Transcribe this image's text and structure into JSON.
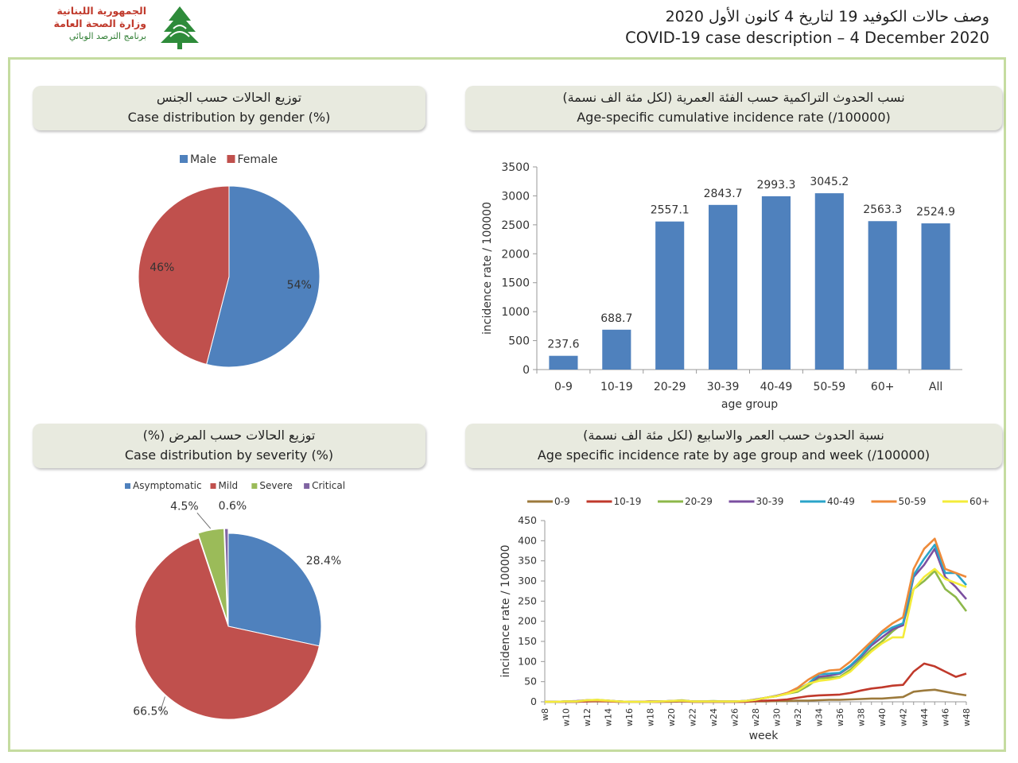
{
  "logo": {
    "line1": "الجمهورية اللبنانية",
    "line2": "وزارة الصحة العامة",
    "line3": "برنامج الترصد الوبائي"
  },
  "header": {
    "title_ar": "وصف حالات الكوفيد 19 لتاريخ  4 كانون الأول 2020",
    "title_en": "COVID-19 case description – 4 December 2020"
  },
  "panels": {
    "gender_title_ar": "توزيع الحالات حسب الجنس",
    "gender_title_en": "Case distribution by gender (%)",
    "age_title_ar": "نسب الحدوث التراكمية حسب الفئة العمرية (لكل مئة الف نسمة)",
    "age_title_en": "Age-specific cumulative incidence rate (/100000)",
    "severity_title_ar": "توزيع الحالات حسب المرض (%)",
    "severity_title_en": "Case distribution by severity (%)",
    "week_title_ar": "نسبة الحدوث حسب العمر والاسابيع (لكل مئة الف نسمة)",
    "week_title_en": "Age specific incidence rate by age group and week (/100000)"
  },
  "chart_data": [
    {
      "id": "gender",
      "type": "pie",
      "title": "Case distribution by gender (%)",
      "labels": [
        "Male",
        "Female"
      ],
      "values": [
        54,
        46
      ],
      "value_labels": [
        "54%",
        "46%"
      ],
      "colors": [
        "#4f81bd",
        "#c0504d"
      ],
      "legend": "top"
    },
    {
      "id": "age",
      "type": "bar",
      "title": "Age-specific cumulative incidence rate (/100000)",
      "categories": [
        "0-9",
        "10-19",
        "20-29",
        "30-39",
        "40-49",
        "50-59",
        "60+",
        "All"
      ],
      "values": [
        237.6,
        688.7,
        2557.1,
        2843.7,
        2993.3,
        3045.2,
        2563.3,
        2524.9
      ],
      "value_labels": [
        "237.6",
        "688.7",
        "2557.1",
        "2843.7",
        "2993.3",
        "3045.2",
        "2563.3",
        "2524.9"
      ],
      "xlabel": "age group",
      "ylabel": "incidence rate / 100000",
      "ylim": [
        0,
        3500
      ],
      "yticks": [
        "0",
        "500",
        "1000",
        "1500",
        "2000",
        "2500",
        "3000",
        "3500"
      ],
      "color": "#4f81bd"
    },
    {
      "id": "severity",
      "type": "pie",
      "title": "Case distribution by severity (%)",
      "labels": [
        "Asymptomatic",
        "Mild",
        "Severe",
        "Critical"
      ],
      "values": [
        28.4,
        66.5,
        4.5,
        0.6
      ],
      "value_labels": [
        "28.4%",
        "66.5%",
        "4.5%",
        "0.6%"
      ],
      "colors": [
        "#4f81bd",
        "#c0504d",
        "#9bbb59",
        "#8064a2"
      ],
      "legend": "top"
    },
    {
      "id": "weekly",
      "type": "line",
      "title": "Age specific incidence rate by age group and week (/100000)",
      "xlabel": "week",
      "ylabel": "incidence rate / 100000",
      "ylim": [
        0,
        450
      ],
      "yticks": [
        "0",
        "50",
        "100",
        "150",
        "200",
        "250",
        "300",
        "350",
        "400",
        "450"
      ],
      "x": [
        "w8",
        "w9",
        "w10",
        "w11",
        "w12",
        "w13",
        "w14",
        "w15",
        "w16",
        "w17",
        "w18",
        "w19",
        "w20",
        "w21",
        "w22",
        "w23",
        "w24",
        "w25",
        "w26",
        "w27",
        "w28",
        "w29",
        "w30",
        "w31",
        "w32",
        "w33",
        "w34",
        "w35",
        "w36",
        "w37",
        "w38",
        "w39",
        "w40",
        "w41",
        "w42",
        "w43",
        "w44",
        "w45",
        "w46",
        "w47",
        "w48"
      ],
      "xtick_labels": [
        "w8",
        "w10",
        "w12",
        "w14",
        "w16",
        "w18",
        "w20",
        "w22",
        "w24",
        "w26",
        "w28",
        "w30",
        "w32",
        "w34",
        "w36",
        "w38",
        "w40",
        "w42",
        "w44",
        "w46",
        "w48"
      ],
      "series": [
        {
          "name": "0-9",
          "color": "#9c7a3c",
          "values": [
            0,
            0,
            0,
            0,
            1,
            1,
            1,
            0,
            0,
            0,
            0,
            0,
            0,
            1,
            0,
            0,
            0,
            0,
            0,
            0,
            1,
            1,
            2,
            2,
            3,
            3,
            4,
            5,
            5,
            6,
            7,
            8,
            8,
            10,
            12,
            25,
            28,
            30,
            25,
            20,
            16
          ]
        },
        {
          "name": "10-19",
          "color": "#c0392b",
          "values": [
            0,
            0,
            0,
            0,
            1,
            2,
            1,
            0,
            0,
            0,
            0,
            0,
            1,
            2,
            0,
            0,
            0,
            0,
            0,
            0,
            2,
            3,
            4,
            6,
            10,
            14,
            16,
            17,
            18,
            22,
            28,
            33,
            36,
            40,
            42,
            75,
            95,
            88,
            75,
            62,
            70
          ]
        },
        {
          "name": "20-29",
          "color": "#8db84a",
          "values": [
            0,
            0,
            1,
            1,
            4,
            5,
            3,
            1,
            0,
            0,
            0,
            1,
            2,
            4,
            1,
            1,
            2,
            1,
            1,
            2,
            5,
            10,
            15,
            20,
            25,
            40,
            58,
            60,
            62,
            80,
            105,
            130,
            150,
            175,
            195,
            280,
            300,
            325,
            280,
            260,
            225
          ]
        },
        {
          "name": "30-39",
          "color": "#7b4fa0",
          "values": [
            0,
            0,
            1,
            2,
            4,
            4,
            3,
            1,
            0,
            0,
            1,
            1,
            2,
            3,
            1,
            1,
            1,
            1,
            1,
            2,
            6,
            10,
            15,
            22,
            30,
            45,
            62,
            65,
            70,
            88,
            112,
            140,
            160,
            180,
            190,
            310,
            340,
            380,
            310,
            285,
            255
          ]
        },
        {
          "name": "40-49",
          "color": "#2aa4c9",
          "values": [
            0,
            0,
            1,
            1,
            3,
            3,
            2,
            1,
            0,
            0,
            1,
            1,
            2,
            3,
            1,
            1,
            1,
            1,
            1,
            2,
            5,
            10,
            14,
            20,
            30,
            45,
            68,
            70,
            72,
            90,
            115,
            145,
            170,
            185,
            195,
            315,
            355,
            390,
            320,
            320,
            290
          ]
        },
        {
          "name": "50-59",
          "color": "#ee8a3a",
          "values": [
            0,
            0,
            1,
            1,
            3,
            3,
            2,
            1,
            0,
            0,
            1,
            1,
            2,
            3,
            1,
            1,
            1,
            1,
            1,
            2,
            5,
            10,
            14,
            22,
            35,
            55,
            70,
            78,
            80,
            100,
            125,
            150,
            175,
            195,
            210,
            330,
            380,
            405,
            330,
            320,
            310
          ]
        },
        {
          "name": "60+",
          "color": "#f4ec3a",
          "values": [
            0,
            0,
            1,
            1,
            4,
            5,
            3,
            1,
            0,
            0,
            0,
            1,
            2,
            3,
            1,
            1,
            1,
            1,
            1,
            2,
            5,
            10,
            14,
            20,
            28,
            45,
            52,
            55,
            60,
            75,
            100,
            125,
            145,
            160,
            160,
            280,
            310,
            330,
            305,
            295,
            285
          ]
        }
      ]
    }
  ]
}
